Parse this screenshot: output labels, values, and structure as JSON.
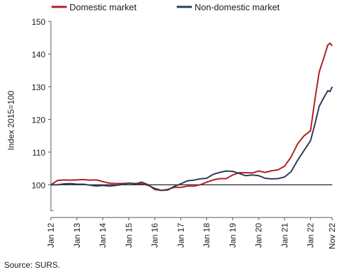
{
  "chart_data": {
    "type": "line",
    "ylabel": "Index 2015=100",
    "ylim": [
      90,
      150
    ],
    "y_axis_break": true,
    "yticks": [
      100,
      110,
      120,
      130,
      140,
      150
    ],
    "ytick_labels": [
      "100",
      "110",
      "120",
      "130",
      "140",
      "150"
    ],
    "x_ticks": [
      "Jan 12",
      "Jan 13",
      "Jan 14",
      "Jan 15",
      "Jan 16",
      "Jan 17",
      "Jan 18",
      "Jan 19",
      "Jan 20",
      "Jan 21",
      "Jan 22",
      "Nov 22"
    ],
    "x_start": "Jan 12",
    "x_end": "Nov 22",
    "legend_position": "top",
    "grid": false,
    "reference_line": 100,
    "series": [
      {
        "name": "Domestic market",
        "color": "#b01c20",
        "points": [
          [
            "2012-01",
            100.0
          ],
          [
            "2012-04",
            101.3
          ],
          [
            "2012-07",
            101.5
          ],
          [
            "2012-10",
            101.4
          ],
          [
            "2013-01",
            101.5
          ],
          [
            "2013-04",
            101.6
          ],
          [
            "2013-07",
            101.4
          ],
          [
            "2013-10",
            101.5
          ],
          [
            "2014-01",
            101.0
          ],
          [
            "2014-04",
            100.5
          ],
          [
            "2014-07",
            100.4
          ],
          [
            "2014-10",
            100.4
          ],
          [
            "2015-01",
            100.5
          ],
          [
            "2015-04",
            100.4
          ],
          [
            "2015-07",
            100.3
          ],
          [
            "2015-10",
            99.8
          ],
          [
            "2016-01",
            98.9
          ],
          [
            "2016-04",
            98.3
          ],
          [
            "2016-07",
            98.6
          ],
          [
            "2016-10",
            99.2
          ],
          [
            "2017-01",
            99.2
          ],
          [
            "2017-04",
            99.6
          ],
          [
            "2017-07",
            99.6
          ],
          [
            "2017-10",
            100.0
          ],
          [
            "2018-01",
            100.8
          ],
          [
            "2018-04",
            101.5
          ],
          [
            "2018-07",
            101.9
          ],
          [
            "2018-10",
            101.9
          ],
          [
            "2019-01",
            103.0
          ],
          [
            "2019-04",
            103.7
          ],
          [
            "2019-07",
            103.7
          ],
          [
            "2019-10",
            103.6
          ],
          [
            "2020-01",
            104.2
          ],
          [
            "2020-04",
            103.8
          ],
          [
            "2020-07",
            104.3
          ],
          [
            "2020-10",
            104.6
          ],
          [
            "2021-01",
            105.7
          ],
          [
            "2021-04",
            108.5
          ],
          [
            "2021-07",
            112.5
          ],
          [
            "2021-10",
            115.0
          ],
          [
            "2022-01",
            116.5
          ],
          [
            "2022-03",
            126.0
          ],
          [
            "2022-05",
            134.5
          ],
          [
            "2022-07",
            138.5
          ],
          [
            "2022-09",
            142.8
          ],
          [
            "2022-10",
            143.3
          ],
          [
            "2022-11",
            142.5
          ]
        ]
      },
      {
        "name": "Non-domestic market",
        "color": "#2b3a55",
        "points": [
          [
            "2012-01",
            100.0
          ],
          [
            "2012-04",
            100.0
          ],
          [
            "2012-07",
            100.3
          ],
          [
            "2012-10",
            100.4
          ],
          [
            "2013-01",
            100.2
          ],
          [
            "2013-04",
            100.2
          ],
          [
            "2013-07",
            99.9
          ],
          [
            "2013-10",
            99.6
          ],
          [
            "2014-01",
            99.8
          ],
          [
            "2014-04",
            99.6
          ],
          [
            "2014-07",
            99.8
          ],
          [
            "2014-10",
            100.1
          ],
          [
            "2015-01",
            100.5
          ],
          [
            "2015-04",
            100.3
          ],
          [
            "2015-07",
            100.8
          ],
          [
            "2015-10",
            100.0
          ],
          [
            "2016-01",
            98.6
          ],
          [
            "2016-04",
            98.3
          ],
          [
            "2016-07",
            98.4
          ],
          [
            "2016-10",
            99.5
          ],
          [
            "2017-01",
            100.3
          ],
          [
            "2017-04",
            101.2
          ],
          [
            "2017-07",
            101.4
          ],
          [
            "2017-10",
            101.8
          ],
          [
            "2018-01",
            102.0
          ],
          [
            "2018-04",
            103.2
          ],
          [
            "2018-07",
            103.8
          ],
          [
            "2018-10",
            104.2
          ],
          [
            "2019-01",
            104.1
          ],
          [
            "2019-04",
            103.5
          ],
          [
            "2019-07",
            102.8
          ],
          [
            "2019-10",
            103.0
          ],
          [
            "2020-01",
            102.8
          ],
          [
            "2020-04",
            102.0
          ],
          [
            "2020-07",
            101.8
          ],
          [
            "2020-10",
            101.9
          ],
          [
            "2021-01",
            102.4
          ],
          [
            "2021-04",
            104.0
          ],
          [
            "2021-07",
            107.5
          ],
          [
            "2021-10",
            110.5
          ],
          [
            "2022-01",
            113.5
          ],
          [
            "2022-03",
            118.5
          ],
          [
            "2022-05",
            124.0
          ],
          [
            "2022-07",
            126.5
          ],
          [
            "2022-09",
            128.8
          ],
          [
            "2022-10",
            128.5
          ],
          [
            "2022-11",
            130.0
          ]
        ]
      }
    ]
  },
  "source": "Source: SURS."
}
